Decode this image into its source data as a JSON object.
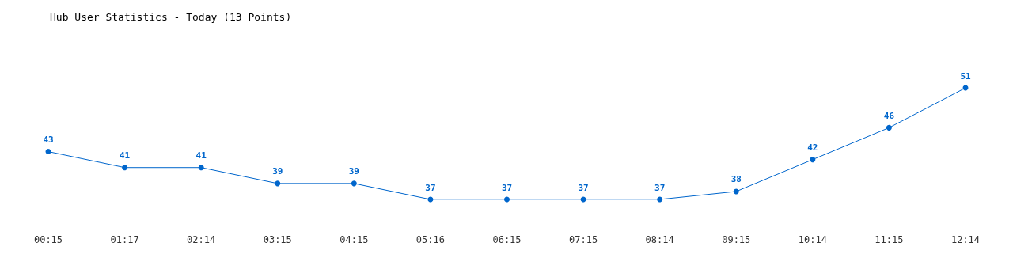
{
  "chart_data": {
    "type": "line",
    "title": "Hub User Statistics - Today (13 Points)",
    "categories": [
      "00:15",
      "01:17",
      "02:14",
      "03:15",
      "04:15",
      "05:16",
      "06:15",
      "07:15",
      "08:14",
      "09:15",
      "10:14",
      "11:15",
      "12:14"
    ],
    "values": [
      43,
      41,
      41,
      39,
      39,
      37,
      37,
      37,
      37,
      38,
      42,
      46,
      51
    ],
    "color": "#0066cc",
    "data_labels": true,
    "marker": "circle",
    "line_style": "solid",
    "grid": false
  }
}
